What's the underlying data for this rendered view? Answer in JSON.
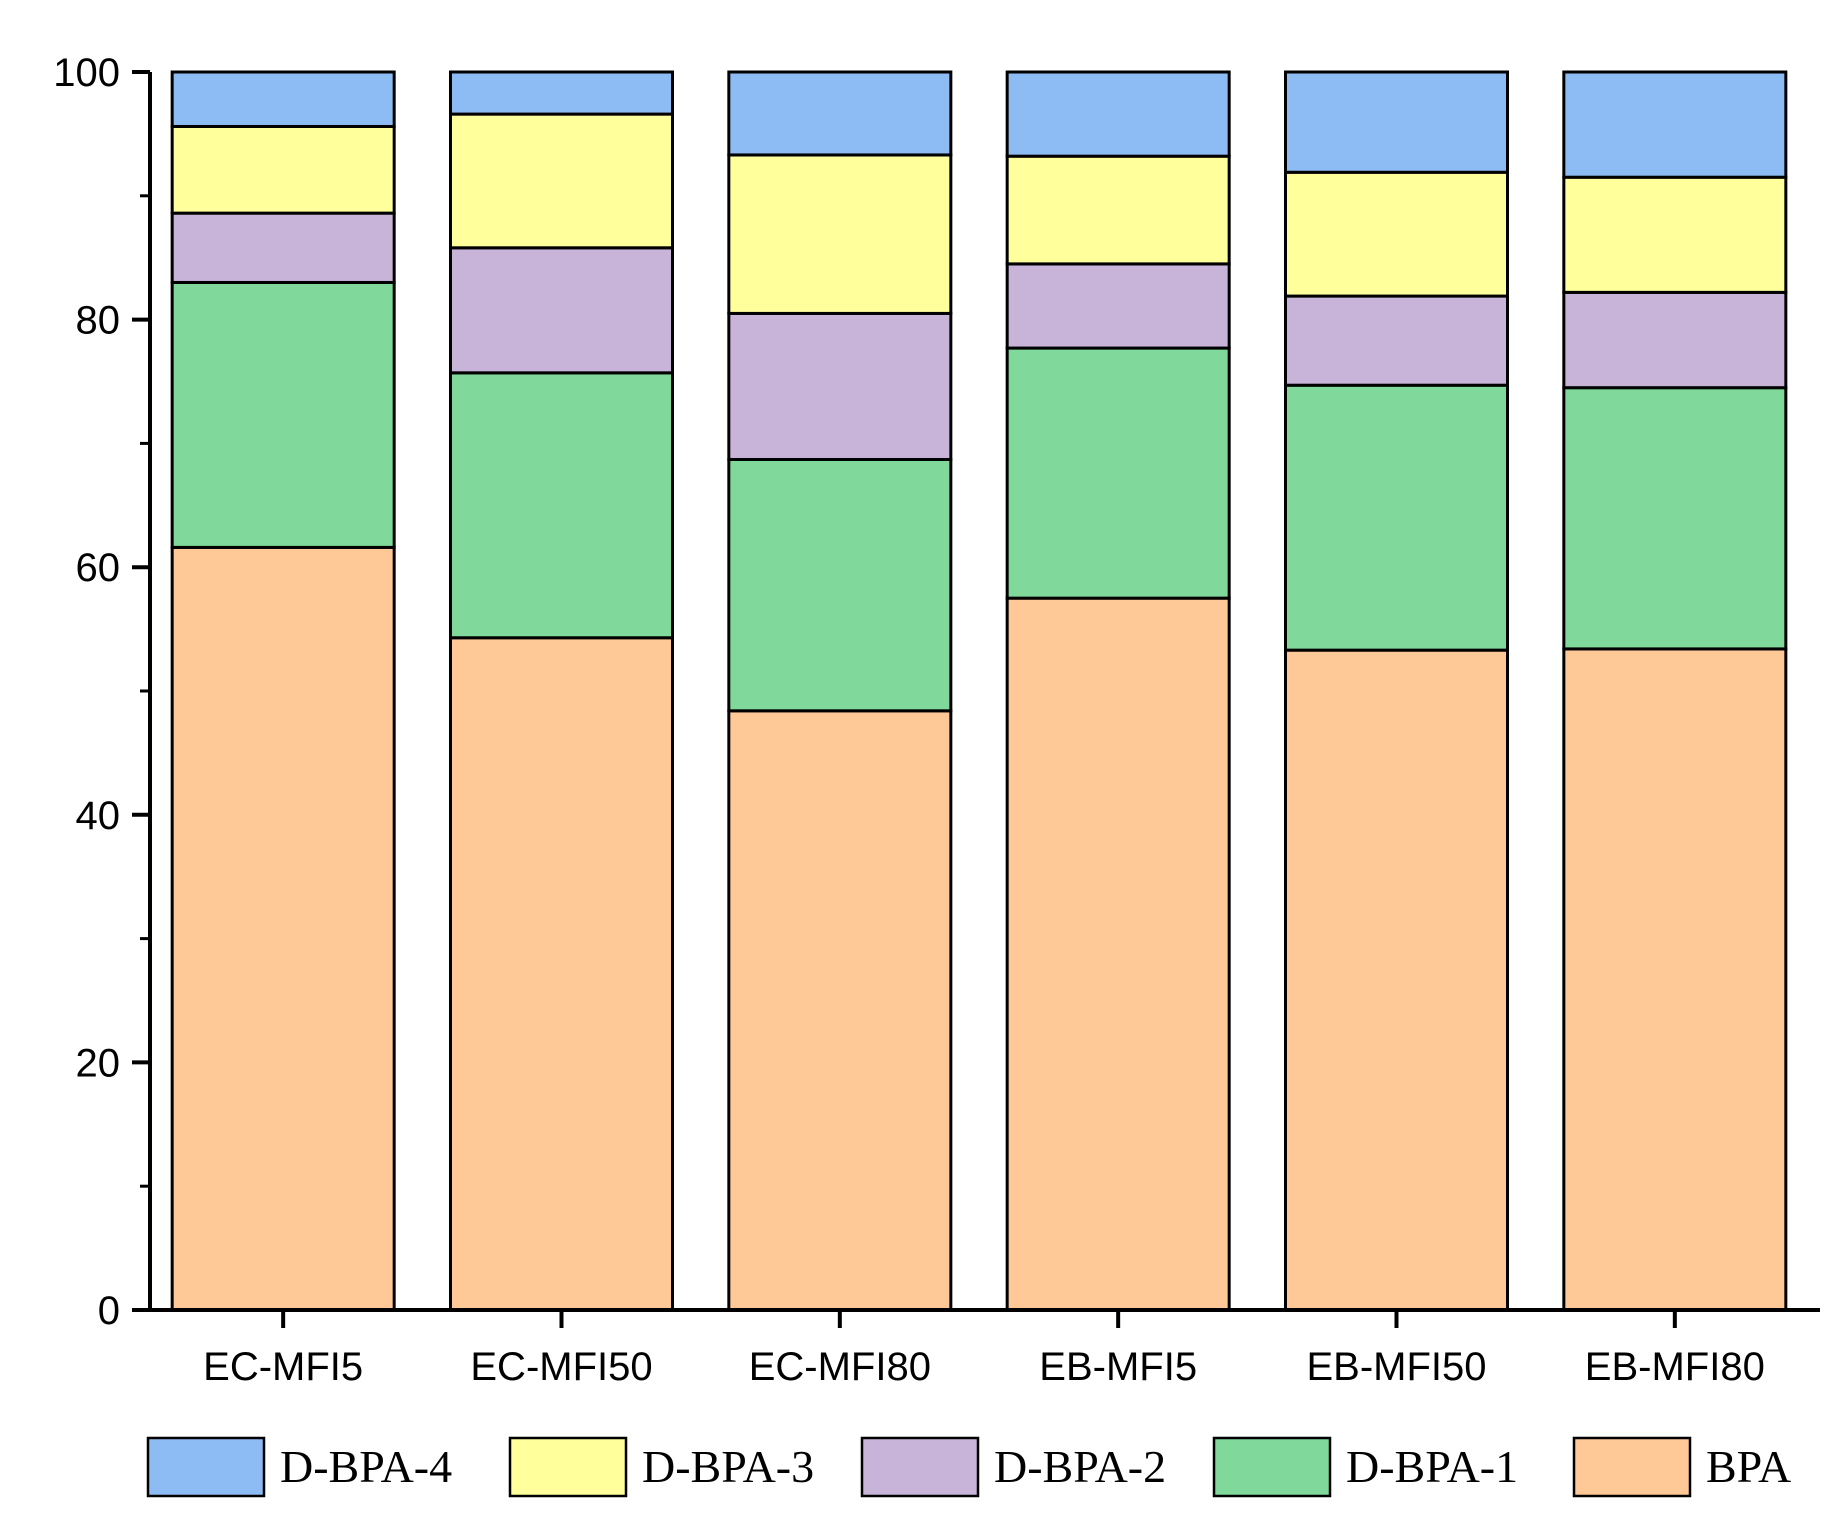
{
  "chart_data": {
    "type": "bar",
    "stacked": true,
    "title": "",
    "xlabel": "",
    "ylabel": "",
    "ylim": [
      0,
      100
    ],
    "yticks": [
      0,
      20,
      40,
      60,
      80,
      100
    ],
    "yticks_minor": [
      10,
      30,
      50,
      70,
      90
    ],
    "categories": [
      "EC-MFI5",
      "EC-MFI50",
      "EC-MFI80",
      "EB-MFI5",
      "EB-MFI50",
      "EB-MFI80"
    ],
    "series": [
      {
        "name": "BPA",
        "color": "#FFC896",
        "values": [
          61.6,
          54.3,
          48.4,
          57.5,
          53.3,
          53.4
        ]
      },
      {
        "name": "D-BPA-1",
        "color": "#80D99A",
        "values": [
          21.4,
          21.4,
          20.3,
          20.2,
          21.4,
          21.1
        ]
      },
      {
        "name": "D-BPA-2",
        "color": "#C8B4D8",
        "values": [
          5.6,
          10.1,
          11.8,
          6.8,
          7.2,
          7.7
        ]
      },
      {
        "name": "D-BPA-3",
        "color": "#FFFF9C",
        "values": [
          7.0,
          10.8,
          12.8,
          8.7,
          10.0,
          9.3
        ]
      },
      {
        "name": "D-BPA-4",
        "color": "#8DBCF4",
        "values": [
          4.4,
          3.4,
          6.7,
          6.8,
          8.1,
          8.5
        ]
      }
    ],
    "legend": {
      "placement": "bottom",
      "order": [
        "D-BPA-4",
        "D-BPA-3",
        "D-BPA-2",
        "D-BPA-1",
        "BPA"
      ]
    },
    "grid": false
  }
}
